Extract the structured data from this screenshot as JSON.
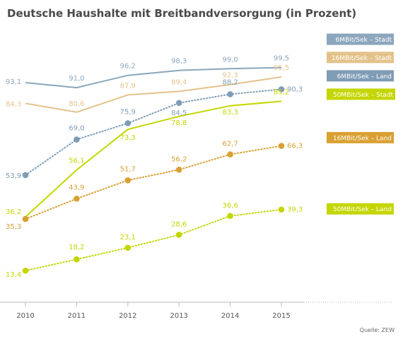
{
  "chart_data": {
    "type": "line",
    "title": "Deutsche Haushalte mit Breitbandversorgung (in Prozent)",
    "source": "Quelle: ZEW",
    "categories": [
      "2010",
      "2011",
      "2012",
      "2013",
      "2014",
      "2015"
    ],
    "ylim": [
      0,
      100
    ],
    "grid": false,
    "legend": "right, at end of each line",
    "series": [
      {
        "name": "6MBit/Sek – Stadt",
        "color": "#8ba6bd",
        "style": "solid",
        "markers": false,
        "values": [
          93.1,
          91.0,
          96.2,
          98.3,
          99.0,
          99.5
        ],
        "labels": [
          "93,1",
          "91,0",
          "96,2",
          "98,3",
          "99,0",
          "99,5"
        ]
      },
      {
        "name": "16MBit/Sek – Stadt",
        "color": "#e3c28a",
        "style": "solid",
        "markers": false,
        "values": [
          84.3,
          80.6,
          87.9,
          89.4,
          92.3,
          95.5
        ],
        "labels": [
          "84,3",
          "80,6",
          "87,9",
          "89,4",
          "92,3",
          "95,5"
        ]
      },
      {
        "name": "6MBit/Sek – Land",
        "color": "#7f9cb6",
        "style": "dotted",
        "markers": true,
        "values": [
          53.9,
          69.0,
          75.9,
          84.5,
          88.2,
          90.3
        ],
        "labels": [
          "53,9",
          "69,0",
          "75,9",
          "84,5",
          "88,2",
          "90,3"
        ]
      },
      {
        "name": "50MBit/Sek – Stadt",
        "color": "#c4d600",
        "style": "solid",
        "markers": false,
        "values": [
          36.2,
          56.1,
          73.3,
          78.8,
          83.3,
          85.2
        ],
        "labels": [
          "36,2",
          "56,1",
          "73,3",
          "78,8",
          "83,3",
          "85,2"
        ]
      },
      {
        "name": "16MBit/Sek – Land",
        "color": "#d9a032",
        "style": "dotted",
        "markers": true,
        "values": [
          35.3,
          43.9,
          51.7,
          56.2,
          62.7,
          66.3
        ],
        "labels": [
          "35,3",
          "43,9",
          "51,7",
          "56,2",
          "62,7",
          "66,3"
        ]
      },
      {
        "name": "50MBit/Sek – Land",
        "color": "#c4d600",
        "style": "dotted",
        "markers": true,
        "values": [
          13.4,
          18.2,
          23.1,
          28.6,
          36.6,
          39.3
        ],
        "labels": [
          "13,4",
          "18,2",
          "23,1",
          "28,6",
          "36,6",
          "39,3"
        ]
      }
    ]
  }
}
